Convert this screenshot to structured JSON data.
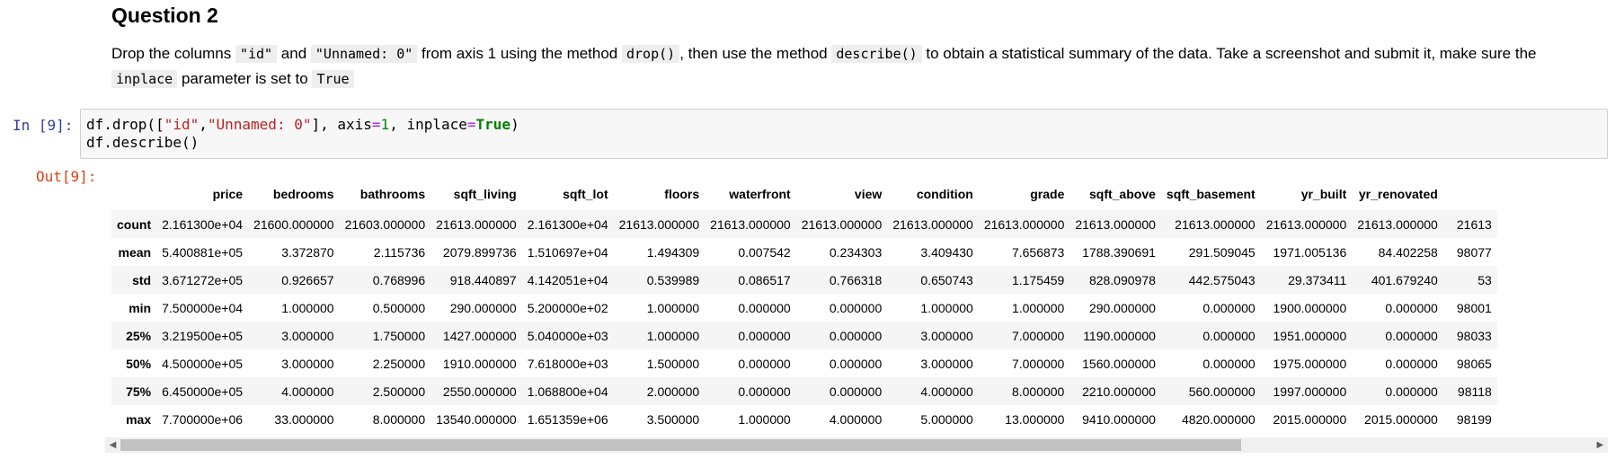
{
  "markdown": {
    "heading": "Question 2",
    "para": {
      "t1": "Drop the columns ",
      "c1": "\"id\"",
      "t2": " and ",
      "c2": "\"Unnamed: 0\"",
      "t3": " from axis 1 using the method ",
      "c3": "drop()",
      "t4": ", then use the method ",
      "c4": "describe()",
      "t5": " to obtain a statistical summary of the data. Take a screenshot and submit it, make sure the ",
      "c5": "inplace",
      "t6": " parameter is set to ",
      "c6": "True"
    }
  },
  "cell": {
    "in_prompt": "In [9]:",
    "out_prompt": "Out[9]:",
    "code": {
      "l1a": "df.drop([",
      "l1s1": "\"id\"",
      "l1b": ",",
      "l1s2": "\"Unnamed: 0\"",
      "l1c": "], axis",
      "l1eq1": "=",
      "l1num": "1",
      "l1d": ", inplace",
      "l1eq2": "=",
      "l1kw": "True",
      "l1e": ")",
      "l2": "df.describe()"
    }
  },
  "table": {
    "columns": [
      "price",
      "bedrooms",
      "bathrooms",
      "sqft_living",
      "sqft_lot",
      "floors",
      "waterfront",
      "view",
      "condition",
      "grade",
      "sqft_above",
      "sqft_basement",
      "yr_built",
      "yr_renovated",
      ""
    ],
    "rows": [
      {
        "label": "count",
        "values": [
          "2.161300e+04",
          "21600.000000",
          "21603.000000",
          "21613.000000",
          "2.161300e+04",
          "21613.000000",
          "21613.000000",
          "21613.000000",
          "21613.000000",
          "21613.000000",
          "21613.000000",
          "21613.000000",
          "21613.000000",
          "21613.000000",
          "21613"
        ]
      },
      {
        "label": "mean",
        "values": [
          "5.400881e+05",
          "3.372870",
          "2.115736",
          "2079.899736",
          "1.510697e+04",
          "1.494309",
          "0.007542",
          "0.234303",
          "3.409430",
          "7.656873",
          "1788.390691",
          "291.509045",
          "1971.005136",
          "84.402258",
          "98077"
        ]
      },
      {
        "label": "std",
        "values": [
          "3.671272e+05",
          "0.926657",
          "0.768996",
          "918.440897",
          "4.142051e+04",
          "0.539989",
          "0.086517",
          "0.766318",
          "0.650743",
          "1.175459",
          "828.090978",
          "442.575043",
          "29.373411",
          "401.679240",
          "53"
        ]
      },
      {
        "label": "min",
        "values": [
          "7.500000e+04",
          "1.000000",
          "0.500000",
          "290.000000",
          "5.200000e+02",
          "1.000000",
          "0.000000",
          "0.000000",
          "1.000000",
          "1.000000",
          "290.000000",
          "0.000000",
          "1900.000000",
          "0.000000",
          "98001"
        ]
      },
      {
        "label": "25%",
        "values": [
          "3.219500e+05",
          "3.000000",
          "1.750000",
          "1427.000000",
          "5.040000e+03",
          "1.000000",
          "0.000000",
          "0.000000",
          "3.000000",
          "7.000000",
          "1190.000000",
          "0.000000",
          "1951.000000",
          "0.000000",
          "98033"
        ]
      },
      {
        "label": "50%",
        "values": [
          "4.500000e+05",
          "3.000000",
          "2.250000",
          "1910.000000",
          "7.618000e+03",
          "1.500000",
          "0.000000",
          "0.000000",
          "3.000000",
          "7.000000",
          "1560.000000",
          "0.000000",
          "1975.000000",
          "0.000000",
          "98065"
        ]
      },
      {
        "label": "75%",
        "values": [
          "6.450000e+05",
          "4.000000",
          "2.500000",
          "2550.000000",
          "1.068800e+04",
          "2.000000",
          "0.000000",
          "0.000000",
          "4.000000",
          "8.000000",
          "2210.000000",
          "560.000000",
          "1997.000000",
          "0.000000",
          "98118"
        ]
      },
      {
        "label": "max",
        "values": [
          "7.700000e+06",
          "33.000000",
          "8.000000",
          "13540.000000",
          "1.651359e+06",
          "3.500000",
          "1.000000",
          "4.000000",
          "5.000000",
          "13.000000",
          "9410.000000",
          "4820.000000",
          "2015.000000",
          "2015.000000",
          "98199"
        ]
      }
    ]
  },
  "scrollbar": {
    "left_arrow": "◀",
    "right_arrow": "▶"
  }
}
